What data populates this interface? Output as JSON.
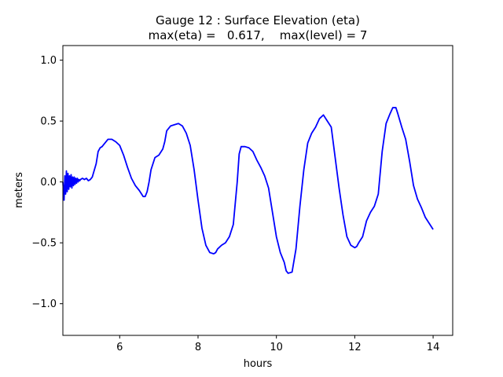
{
  "chart_data": {
    "type": "line",
    "title": "Gauge 12 : Surface Elevation (eta)",
    "subtitle": "max(eta) =   0.617,    max(level) = 7",
    "xlabel": "hours",
    "ylabel": "meters",
    "xlim": [
      4.55,
      14.5
    ],
    "ylim": [
      -1.26,
      1.12
    ],
    "xticks": [
      6,
      8,
      10,
      12,
      14
    ],
    "xtick_labels": [
      "6",
      "8",
      "10",
      "12",
      "14"
    ],
    "yticks": [
      -1.0,
      -0.5,
      0.0,
      0.5,
      1.0
    ],
    "ytick_labels": [
      "−1.0",
      "−0.5",
      "0.0",
      "0.5",
      "1.0"
    ],
    "grid": false,
    "series": [
      {
        "color": "#0000ff",
        "x": [
          4.55,
          4.58,
          4.6,
          4.62,
          4.64,
          4.66,
          4.68,
          4.7,
          4.72,
          4.74,
          4.76,
          4.78,
          4.8,
          4.82,
          4.84,
          4.86,
          4.88,
          4.9,
          4.92,
          4.94,
          4.96,
          4.98,
          5.0,
          5.05,
          5.1,
          5.15,
          5.2,
          5.25,
          5.3,
          5.4,
          5.45,
          5.5,
          5.55,
          5.6,
          5.7,
          5.8,
          5.9,
          6.0,
          6.1,
          6.2,
          6.3,
          6.4,
          6.5,
          6.6,
          6.65,
          6.7,
          6.75,
          6.8,
          6.9,
          7.0,
          7.1,
          7.15,
          7.2,
          7.3,
          7.4,
          7.5,
          7.6,
          7.7,
          7.8,
          7.9,
          8.0,
          8.1,
          8.2,
          8.3,
          8.4,
          8.45,
          8.5,
          8.6,
          8.7,
          8.8,
          8.9,
          9.0,
          9.05,
          9.1,
          9.2,
          9.3,
          9.4,
          9.5,
          9.6,
          9.7,
          9.8,
          9.9,
          10.0,
          10.1,
          10.2,
          10.25,
          10.3,
          10.4,
          10.5,
          10.6,
          10.7,
          10.8,
          10.9,
          11.0,
          11.1,
          11.2,
          11.3,
          11.4,
          11.5,
          11.6,
          11.7,
          11.8,
          11.9,
          12.0,
          12.05,
          12.1,
          12.2,
          12.3,
          12.4,
          12.5,
          12.6,
          12.7,
          12.8,
          12.9,
          12.97,
          13.05,
          13.1,
          13.2,
          13.3,
          13.4,
          13.5,
          13.6,
          13.7,
          13.8,
          13.9,
          14.0
        ],
        "y": [
          0.0,
          -0.15,
          0.05,
          -0.1,
          0.09,
          -0.08,
          0.07,
          -0.06,
          0.05,
          -0.04,
          0.06,
          -0.05,
          0.04,
          -0.03,
          0.04,
          -0.02,
          0.03,
          -0.01,
          0.03,
          0.0,
          0.02,
          0.01,
          0.02,
          0.03,
          0.02,
          0.03,
          0.01,
          0.02,
          0.04,
          0.15,
          0.25,
          0.28,
          0.29,
          0.31,
          0.35,
          0.35,
          0.33,
          0.3,
          0.22,
          0.12,
          0.03,
          -0.03,
          -0.07,
          -0.12,
          -0.12,
          -0.08,
          0.0,
          0.1,
          0.2,
          0.22,
          0.27,
          0.33,
          0.42,
          0.46,
          0.47,
          0.48,
          0.46,
          0.4,
          0.3,
          0.1,
          -0.15,
          -0.38,
          -0.52,
          -0.58,
          -0.59,
          -0.58,
          -0.55,
          -0.52,
          -0.5,
          -0.45,
          -0.35,
          0.0,
          0.23,
          0.29,
          0.29,
          0.28,
          0.25,
          0.18,
          0.12,
          0.05,
          -0.05,
          -0.25,
          -0.45,
          -0.58,
          -0.66,
          -0.73,
          -0.75,
          -0.74,
          -0.55,
          -0.2,
          0.1,
          0.32,
          0.4,
          0.45,
          0.52,
          0.55,
          0.5,
          0.45,
          0.2,
          -0.05,
          -0.27,
          -0.45,
          -0.52,
          -0.54,
          -0.53,
          -0.5,
          -0.45,
          -0.32,
          -0.25,
          -0.2,
          -0.1,
          0.25,
          0.48,
          0.56,
          0.61,
          0.61,
          0.56,
          0.45,
          0.35,
          0.17,
          -0.03,
          -0.14,
          -0.21,
          -0.29,
          -0.34,
          -0.39
        ]
      }
    ]
  }
}
